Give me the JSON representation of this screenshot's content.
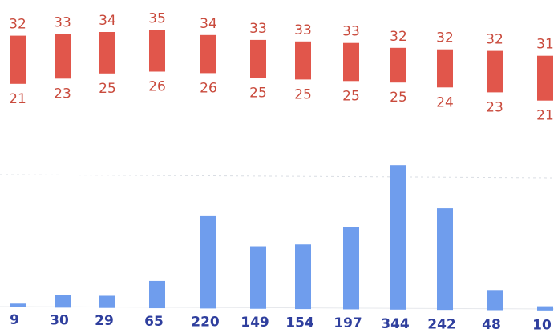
{
  "chart_data": [
    {
      "type": "bar",
      "title": "",
      "xlabel": "",
      "ylabel": "",
      "color": "#e1564b",
      "series": [
        {
          "values_high": [
            32,
            33,
            34,
            35,
            34,
            33,
            33,
            33,
            32,
            32,
            32,
            31
          ]
        },
        {
          "values_low": [
            21,
            23,
            25,
            26,
            26,
            25,
            25,
            25,
            25,
            24,
            23,
            21
          ]
        }
      ],
      "ylim": [
        20,
        36
      ]
    },
    {
      "type": "bar",
      "title": "",
      "xlabel": "",
      "ylabel": "",
      "color": "#6f9ded",
      "values": [
        9,
        30,
        29,
        65,
        220,
        149,
        154,
        197,
        344,
        242,
        48,
        10
      ],
      "ylim": [
        0,
        360
      ],
      "grid": true
    }
  ]
}
